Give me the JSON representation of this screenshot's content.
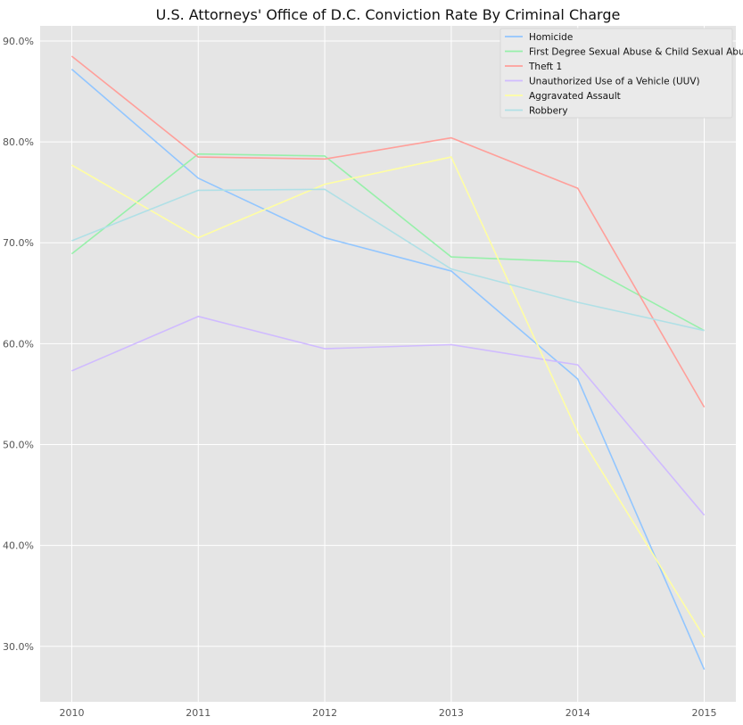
{
  "chart_data": {
    "type": "line",
    "title": "U.S. Attorneys' Office of D.C. Conviction Rate By Criminal Charge",
    "xlabel": "",
    "ylabel": "",
    "x": [
      "2010",
      "2011",
      "2012",
      "2013",
      "2014",
      "2015"
    ],
    "xlim": [
      2009.75,
      2015.25
    ],
    "ylim": [
      24.5,
      91.5
    ],
    "yticks": [
      30,
      40,
      50,
      60,
      70,
      80,
      90
    ],
    "ytick_labels": [
      "30.0%",
      "40.0%",
      "50.0%",
      "60.0%",
      "70.0%",
      "80.0%",
      "90.0%"
    ],
    "grid": true,
    "legend_position": "top-right",
    "background_color": "#e5e5e5",
    "grid_color": "#ffffff",
    "series": [
      {
        "name": "Homicide",
        "color": "#92c6ff",
        "values": [
          87.2,
          76.4,
          70.5,
          67.2,
          56.5,
          27.7
        ]
      },
      {
        "name": "First Degree Sexual Abuse & Child Sexual Abuse",
        "color": "#97f0aa",
        "values": [
          68.9,
          78.8,
          78.6,
          68.6,
          68.1,
          61.3
        ]
      },
      {
        "name": "Theft 1",
        "color": "#ff9f9a",
        "values": [
          88.5,
          78.5,
          78.3,
          80.4,
          75.4,
          53.7
        ]
      },
      {
        "name": "Unauthorized Use of a Vehicle (UUV)",
        "color": "#d0bbff",
        "values": [
          57.3,
          62.7,
          59.5,
          59.9,
          57.9,
          43.0
        ]
      },
      {
        "name": "Aggravated Assault",
        "color": "#fffea3",
        "values": [
          77.7,
          70.5,
          75.8,
          78.5,
          51.2,
          30.9
        ]
      },
      {
        "name": "Robbery",
        "color": "#b0e0e6",
        "values": [
          70.2,
          75.2,
          75.3,
          67.4,
          64.1,
          61.3
        ]
      }
    ]
  }
}
